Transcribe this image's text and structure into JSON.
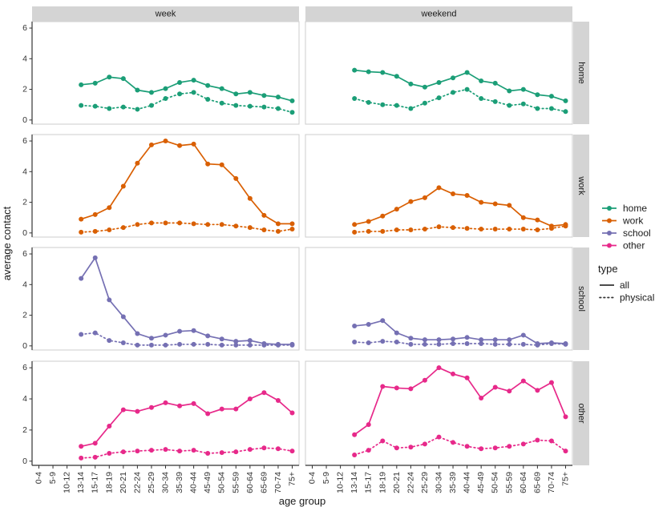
{
  "chart_data": {
    "type": "line",
    "xlabel": "age group",
    "ylabel": "average contact",
    "facet_cols": [
      "week",
      "weekend"
    ],
    "facet_rows": [
      "home",
      "work",
      "school",
      "other"
    ],
    "categories": [
      "0-4",
      "5-9",
      "10-12",
      "13-14",
      "15-17",
      "18-19",
      "20-21",
      "22-24",
      "25-29",
      "30-34",
      "35-39",
      "40-44",
      "45-49",
      "50-54",
      "55-59",
      "60-64",
      "65-69",
      "70-74",
      "75+"
    ],
    "ylim": [
      0,
      6
    ],
    "yticks": [
      0,
      2,
      4,
      6
    ],
    "grid": false,
    "legend_position": "right",
    "legend": {
      "items": [
        {
          "label": "home",
          "color": "#1B9E77"
        },
        {
          "label": "work",
          "color": "#D95F02"
        },
        {
          "label": "school",
          "color": "#7570B3"
        },
        {
          "label": "other",
          "color": "#E7298A"
        }
      ],
      "type_title": "type",
      "type_items": [
        {
          "label": "all",
          "linetype": "solid"
        },
        {
          "label": "physical",
          "linetype": "dotted"
        }
      ]
    },
    "series": [
      {
        "facet_row": "home",
        "facet_col": "week",
        "type": "all",
        "start_index": 3,
        "values": [
          2.3,
          2.4,
          2.8,
          2.7,
          1.95,
          1.8,
          2.05,
          2.45,
          2.6,
          2.25,
          2.05,
          1.7,
          1.8,
          1.6,
          1.5,
          1.25
        ]
      },
      {
        "facet_row": "home",
        "facet_col": "week",
        "type": "physical",
        "start_index": 3,
        "values": [
          0.95,
          0.9,
          0.75,
          0.85,
          0.7,
          0.95,
          1.4,
          1.7,
          1.8,
          1.35,
          1.1,
          0.95,
          0.9,
          0.85,
          0.75,
          0.5
        ]
      },
      {
        "facet_row": "home",
        "facet_col": "weekend",
        "type": "all",
        "start_index": 3,
        "values": [
          3.25,
          3.15,
          3.1,
          2.85,
          2.35,
          2.15,
          2.45,
          2.75,
          3.1,
          2.55,
          2.4,
          1.9,
          2.0,
          1.65,
          1.55,
          1.25
        ]
      },
      {
        "facet_row": "home",
        "facet_col": "weekend",
        "type": "physical",
        "start_index": 3,
        "values": [
          1.4,
          1.15,
          1.0,
          0.95,
          0.75,
          1.1,
          1.45,
          1.8,
          2.0,
          1.4,
          1.2,
          0.95,
          1.05,
          0.75,
          0.75,
          0.55
        ]
      },
      {
        "facet_row": "work",
        "facet_col": "week",
        "type": "all",
        "start_index": 3,
        "values": [
          0.9,
          1.2,
          1.65,
          3.05,
          4.55,
          5.75,
          6.0,
          5.7,
          5.8,
          4.5,
          4.45,
          3.55,
          2.25,
          1.15,
          0.6,
          0.6
        ]
      },
      {
        "facet_row": "work",
        "facet_col": "week",
        "type": "physical",
        "start_index": 3,
        "values": [
          0.05,
          0.1,
          0.2,
          0.35,
          0.55,
          0.65,
          0.65,
          0.65,
          0.6,
          0.55,
          0.55,
          0.45,
          0.35,
          0.2,
          0.1,
          0.25
        ]
      },
      {
        "facet_row": "work",
        "facet_col": "weekend",
        "type": "all",
        "start_index": 3,
        "values": [
          0.55,
          0.75,
          1.1,
          1.55,
          2.05,
          2.3,
          2.95,
          2.55,
          2.45,
          2.0,
          1.9,
          1.8,
          1.0,
          0.85,
          0.45,
          0.55
        ]
      },
      {
        "facet_row": "work",
        "facet_col": "weekend",
        "type": "physical",
        "start_index": 3,
        "values": [
          0.05,
          0.1,
          0.1,
          0.2,
          0.2,
          0.25,
          0.4,
          0.35,
          0.3,
          0.25,
          0.25,
          0.25,
          0.25,
          0.2,
          0.3,
          0.45
        ]
      },
      {
        "facet_row": "school",
        "facet_col": "week",
        "type": "all",
        "start_index": 3,
        "values": [
          4.4,
          5.75,
          3.0,
          1.9,
          0.8,
          0.5,
          0.7,
          0.95,
          1.0,
          0.65,
          0.45,
          0.3,
          0.35,
          0.15,
          0.1,
          0.1
        ]
      },
      {
        "facet_row": "school",
        "facet_col": "week",
        "type": "physical",
        "start_index": 3,
        "values": [
          0.75,
          0.85,
          0.35,
          0.2,
          0.05,
          0.05,
          0.05,
          0.1,
          0.1,
          0.1,
          0.05,
          0.05,
          0.05,
          0.05,
          0.05,
          0.05
        ]
      },
      {
        "facet_row": "school",
        "facet_col": "weekend",
        "type": "all",
        "start_index": 3,
        "values": [
          1.3,
          1.4,
          1.65,
          0.85,
          0.5,
          0.4,
          0.4,
          0.45,
          0.55,
          0.4,
          0.4,
          0.4,
          0.7,
          0.15,
          0.2,
          0.15
        ]
      },
      {
        "facet_row": "school",
        "facet_col": "weekend",
        "type": "physical",
        "start_index": 3,
        "values": [
          0.25,
          0.2,
          0.3,
          0.25,
          0.1,
          0.1,
          0.1,
          0.15,
          0.15,
          0.15,
          0.1,
          0.1,
          0.1,
          0.05,
          0.15,
          0.1
        ]
      },
      {
        "facet_row": "other",
        "facet_col": "week",
        "type": "all",
        "start_index": 3,
        "values": [
          0.95,
          1.15,
          2.25,
          3.3,
          3.2,
          3.45,
          3.75,
          3.55,
          3.7,
          3.05,
          3.35,
          3.35,
          4.0,
          4.4,
          3.9,
          3.1
        ]
      },
      {
        "facet_row": "other",
        "facet_col": "week",
        "type": "physical",
        "start_index": 3,
        "values": [
          0.2,
          0.25,
          0.5,
          0.6,
          0.65,
          0.7,
          0.75,
          0.65,
          0.7,
          0.5,
          0.55,
          0.6,
          0.75,
          0.85,
          0.8,
          0.65
        ]
      },
      {
        "facet_row": "other",
        "facet_col": "weekend",
        "type": "all",
        "start_index": 3,
        "values": [
          1.7,
          2.35,
          4.8,
          4.7,
          4.65,
          5.2,
          6.0,
          5.6,
          5.35,
          4.05,
          4.75,
          4.5,
          5.15,
          4.55,
          5.05,
          2.85
        ]
      },
      {
        "facet_row": "other",
        "facet_col": "weekend",
        "type": "physical",
        "start_index": 3,
        "values": [
          0.4,
          0.7,
          1.3,
          0.85,
          0.9,
          1.1,
          1.55,
          1.2,
          0.95,
          0.8,
          0.85,
          0.95,
          1.1,
          1.35,
          1.3,
          0.65
        ]
      }
    ]
  }
}
